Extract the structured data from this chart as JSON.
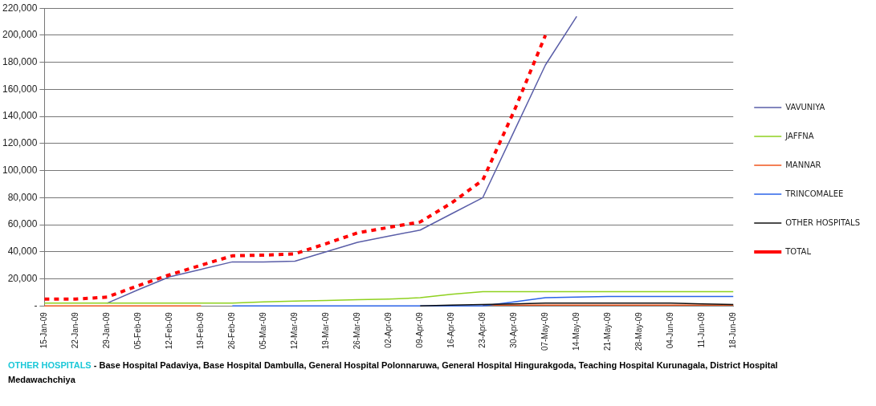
{
  "chart_data": {
    "type": "line",
    "categories": [
      "15-Jan-09",
      "22-Jan-09",
      "29-Jan-09",
      "05-Feb-09",
      "12-Feb-09",
      "19-Feb-09",
      "26-Feb-09",
      "05-Mar-09",
      "12-Mar-09",
      "19-Mar-09",
      "26-Mar-09",
      "02-Apr-09",
      "09-Apr-09",
      "16-Apr-09",
      "23-Apr-09",
      "30-Apr-09",
      "07-May-09",
      "14-May-09",
      "21-May-09",
      "28-May-09",
      "04-Jun-09",
      "11-Jun-09",
      "18-Jun-09"
    ],
    "series": [
      {
        "name": "VAVUNIYA",
        "color": "#5a5ea8",
        "values": [
          null,
          null,
          2000,
          12000,
          21500,
          27000,
          32500,
          32500,
          33000,
          40000,
          47000,
          51500,
          56000,
          68000,
          80000,
          129000,
          178000,
          214000,
          null,
          null,
          null,
          null,
          null
        ]
      },
      {
        "name": "JAFFNA",
        "color": "#8fd11f",
        "values": [
          2000,
          2000,
          2000,
          2000,
          2000,
          2000,
          2000,
          3000,
          3500,
          4000,
          4500,
          5000,
          6000,
          8500,
          10500,
          10500,
          10500,
          10500,
          10500,
          10500,
          10500,
          10500,
          10500
        ]
      },
      {
        "name": "MANNAR",
        "color": "#f0561c",
        "values": [
          0,
          0,
          0,
          0,
          0,
          0,
          null,
          null,
          null,
          null,
          null,
          null,
          null,
          null,
          500,
          500,
          500,
          500,
          500,
          500,
          500,
          500,
          500
        ]
      },
      {
        "name": "TRINCOMALEE",
        "color": "#2b63e8",
        "values": [
          null,
          null,
          null,
          null,
          null,
          null,
          0,
          0,
          0,
          0,
          0,
          0,
          0,
          0,
          0,
          3000,
          6000,
          6500,
          7000,
          7000,
          7000,
          7000,
          7000
        ]
      },
      {
        "name": "OTHER HOSPITALS",
        "color": "#111111",
        "values": [
          null,
          null,
          null,
          null,
          null,
          null,
          null,
          null,
          null,
          null,
          null,
          null,
          0,
          500,
          1000,
          1500,
          2000,
          2000,
          2000,
          2000,
          2000,
          1500,
          1000
        ]
      },
      {
        "name": "TOTAL",
        "color": "#ff0000",
        "line_style": "dashed",
        "values": [
          5000,
          5000,
          6500,
          15000,
          23000,
          30000,
          37000,
          37500,
          38500,
          46000,
          54000,
          58000,
          62000,
          76000,
          93000,
          144000,
          200000,
          null,
          null,
          null,
          null,
          null,
          null
        ]
      }
    ],
    "ylim": [
      0,
      220000
    ],
    "yticks": [
      {
        "value": 0,
        "label": "-"
      },
      {
        "value": 20000,
        "label": "20,000"
      },
      {
        "value": 40000,
        "label": "40,000"
      },
      {
        "value": 60000,
        "label": "60,000"
      },
      {
        "value": 80000,
        "label": "80,000"
      },
      {
        "value": 100000,
        "label": "100,000"
      },
      {
        "value": 120000,
        "label": "120,000"
      },
      {
        "value": 140000,
        "label": "140,000"
      },
      {
        "value": 160000,
        "label": "160,000"
      },
      {
        "value": 180000,
        "label": "180,000"
      },
      {
        "value": 200000,
        "label": "200,000"
      },
      {
        "value": 220000,
        "label": "220,000"
      }
    ],
    "grid": "y",
    "legend": "right",
    "marker": "none",
    "annotations": [
      "OTHER HOSPITALS",
      "- Base Hospital Padaviya, Base Hospital Dambulla, General Hospital Polonnaruwa, General Hospital Hingurakgoda, Teaching Hospital Kurunagala, District Hospital Medawachchiya"
    ]
  }
}
